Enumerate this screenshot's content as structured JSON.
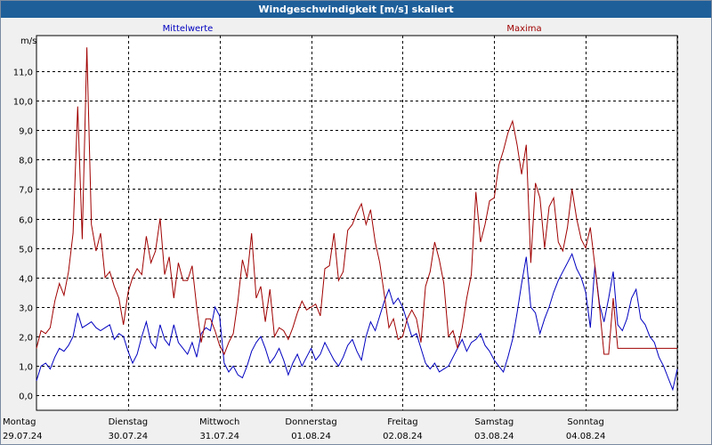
{
  "window": {
    "title": "Windgeschwindigkeit [m/s] skaliert"
  },
  "chart_data": {
    "type": "line",
    "title": "Windgeschwindigkeit [m/s] skaliert",
    "ylabel": "m/s",
    "xlabel": "",
    "ylim": [
      -0.5,
      12.2
    ],
    "yticks": [
      "0,0",
      "1,0",
      "2,0",
      "3,0",
      "4,0",
      "5,0",
      "6,0",
      "7,0",
      "8,0",
      "9,0",
      "10,0",
      "11,0"
    ],
    "ytick_values": [
      0,
      1,
      2,
      3,
      4,
      5,
      6,
      7,
      8,
      9,
      10,
      11
    ],
    "grid": true,
    "legend_placement": "top",
    "day_labels": [
      {
        "day": "Montag",
        "date": "29.07.24"
      },
      {
        "day": "Dienstag",
        "date": "30.07.24"
      },
      {
        "day": "Mittwoch",
        "date": "31.07.24"
      },
      {
        "day": "Donnerstag",
        "date": "01.08.24"
      },
      {
        "day": "Freitag",
        "date": "02.08.24"
      },
      {
        "day": "Samstag",
        "date": "03.08.24"
      },
      {
        "day": "Sonntag",
        "date": "04.08.24"
      }
    ],
    "x_unit": "days since 29.07.24 00:00",
    "xlim": [
      0,
      7
    ],
    "series": [
      {
        "name": "Mittelwerte",
        "color": "#0000c0",
        "x": [
          0,
          0.05,
          0.1,
          0.15,
          0.2,
          0.25,
          0.3,
          0.35,
          0.4,
          0.45,
          0.5,
          0.55,
          0.6,
          0.65,
          0.7,
          0.75,
          0.8,
          0.85,
          0.9,
          0.95,
          1,
          1.05,
          1.1,
          1.15,
          1.2,
          1.25,
          1.3,
          1.35,
          1.4,
          1.45,
          1.5,
          1.55,
          1.6,
          1.65,
          1.7,
          1.75,
          1.8,
          1.85,
          1.9,
          1.95,
          2,
          2.05,
          2.1,
          2.15,
          2.2,
          2.25,
          2.3,
          2.35,
          2.4,
          2.45,
          2.5,
          2.55,
          2.6,
          2.65,
          2.7,
          2.75,
          2.8,
          2.85,
          2.9,
          2.95,
          3,
          3.05,
          3.1,
          3.15,
          3.2,
          3.25,
          3.3,
          3.35,
          3.4,
          3.45,
          3.5,
          3.55,
          3.6,
          3.65,
          3.7,
          3.75,
          3.8,
          3.85,
          3.9,
          3.95,
          4,
          4.05,
          4.1,
          4.15,
          4.2,
          4.25,
          4.3,
          4.35,
          4.4,
          4.45,
          4.5,
          4.55,
          4.6,
          4.65,
          4.7,
          4.75,
          4.8,
          4.85,
          4.9,
          4.95,
          5,
          5.05,
          5.1,
          5.15,
          5.2,
          5.25,
          5.3,
          5.35,
          5.4,
          5.45,
          5.5,
          5.55,
          5.6,
          5.65,
          5.7,
          5.75,
          5.8,
          5.85,
          5.9,
          5.95,
          6,
          6.05,
          6.1,
          6.15,
          6.2,
          6.25,
          6.3,
          6.35,
          6.4,
          6.45,
          6.5,
          6.55,
          6.6,
          6.65,
          6.7,
          6.75,
          6.8,
          6.85,
          6.9,
          6.95,
          7
        ],
        "y": [
          0.5,
          1.0,
          1.1,
          0.9,
          1.3,
          1.6,
          1.5,
          1.7,
          2.0,
          2.8,
          2.3,
          2.4,
          2.5,
          2.3,
          2.2,
          2.3,
          2.4,
          1.9,
          2.1,
          2.0,
          1.5,
          1.1,
          1.4,
          2.0,
          2.5,
          1.8,
          1.6,
          2.4,
          1.9,
          1.7,
          2.4,
          1.8,
          1.6,
          1.4,
          1.8,
          1.3,
          2.1,
          2.3,
          2.2,
          3.0,
          2.7,
          1.1,
          0.8,
          1.0,
          0.7,
          0.6,
          1.0,
          1.5,
          1.8,
          2.0,
          1.6,
          1.1,
          1.3,
          1.6,
          1.2,
          0.7,
          1.1,
          1.4,
          1.0,
          1.3,
          1.6,
          1.2,
          1.4,
          1.8,
          1.5,
          1.2,
          1.0,
          1.3,
          1.7,
          1.9,
          1.5,
          1.2,
          2.0,
          2.5,
          2.2,
          2.7,
          3.2,
          3.6,
          3.1,
          3.3,
          3.0,
          2.5,
          2.0,
          2.1,
          1.6,
          1.1,
          0.9,
          1.1,
          0.8,
          0.9,
          1.0,
          1.3,
          1.6,
          1.9,
          1.5,
          1.8,
          1.9,
          2.1,
          1.7,
          1.5,
          1.2,
          1.0,
          0.8,
          1.3,
          1.9,
          2.8,
          3.8,
          4.7,
          3.0,
          2.8,
          2.1,
          2.6,
          3.0,
          3.5,
          3.9,
          4.2,
          4.5,
          4.8,
          4.3,
          4.0,
          3.5,
          2.3,
          4.4,
          3.1,
          2.5,
          3.3,
          4.2,
          2.4,
          2.2,
          2.6,
          3.3,
          3.6,
          2.6,
          2.4,
          2.0,
          1.8,
          1.3,
          1.0,
          0.6,
          0.2,
          0.9
        ]
      },
      {
        "name": "Maxima",
        "color": "#a00000",
        "x": [
          0,
          0.05,
          0.1,
          0.15,
          0.2,
          0.25,
          0.3,
          0.35,
          0.4,
          0.45,
          0.5,
          0.55,
          0.6,
          0.65,
          0.7,
          0.75,
          0.8,
          0.85,
          0.9,
          0.95,
          1,
          1.05,
          1.1,
          1.15,
          1.2,
          1.25,
          1.3,
          1.35,
          1.4,
          1.45,
          1.5,
          1.55,
          1.6,
          1.65,
          1.7,
          1.75,
          1.8,
          1.85,
          1.9,
          1.95,
          2,
          2.05,
          2.1,
          2.15,
          2.2,
          2.25,
          2.3,
          2.35,
          2.4,
          2.45,
          2.5,
          2.55,
          2.6,
          2.65,
          2.7,
          2.75,
          2.8,
          2.85,
          2.9,
          2.95,
          3,
          3.05,
          3.1,
          3.15,
          3.2,
          3.25,
          3.3,
          3.35,
          3.4,
          3.45,
          3.5,
          3.55,
          3.6,
          3.65,
          3.7,
          3.75,
          3.8,
          3.85,
          3.9,
          3.95,
          4,
          4.05,
          4.1,
          4.15,
          4.2,
          4.25,
          4.3,
          4.35,
          4.4,
          4.45,
          4.5,
          4.55,
          4.6,
          4.65,
          4.7,
          4.75,
          4.8,
          4.85,
          4.9,
          4.95,
          5,
          5.05,
          5.1,
          5.15,
          5.2,
          5.25,
          5.3,
          5.35,
          5.4,
          5.45,
          5.5,
          5.55,
          5.6,
          5.65,
          5.7,
          5.75,
          5.8,
          5.85,
          5.9,
          5.95,
          6,
          6.05,
          6.1,
          6.15,
          6.2,
          6.25,
          6.3,
          6.35,
          6.4,
          6.45,
          6.5,
          6.55,
          6.6,
          6.65,
          6.7,
          6.75,
          6.8,
          6.85,
          6.9,
          6.95,
          7
        ],
        "y": [
          1.6,
          2.2,
          2.1,
          2.3,
          3.2,
          3.8,
          3.4,
          4.2,
          5.5,
          9.8,
          5.3,
          11.8,
          5.8,
          4.9,
          5.5,
          4.0,
          4.2,
          3.7,
          3.3,
          2.4,
          3.5,
          4.0,
          4.3,
          4.1,
          5.4,
          4.5,
          4.9,
          6.0,
          4.1,
          4.7,
          3.3,
          4.5,
          3.9,
          3.9,
          4.4,
          3.0,
          1.8,
          2.6,
          2.6,
          2.2,
          1.7,
          1.4,
          1.8,
          2.1,
          3.2,
          4.6,
          4.0,
          5.5,
          3.3,
          3.7,
          2.5,
          3.6,
          2.0,
          2.3,
          2.2,
          1.9,
          2.3,
          2.8,
          3.2,
          2.9,
          3.0,
          3.1,
          2.7,
          4.3,
          4.4,
          5.5,
          3.9,
          4.2,
          5.6,
          5.8,
          6.2,
          6.5,
          5.8,
          6.3,
          5.2,
          4.5,
          3.4,
          2.3,
          2.6,
          1.9,
          2.0,
          2.6,
          2.9,
          2.6,
          1.8,
          3.7,
          4.2,
          5.2,
          4.6,
          3.8,
          2.0,
          2.2,
          1.6,
          2.3,
          3.3,
          4.1,
          6.9,
          5.2,
          5.8,
          6.6,
          6.7,
          7.8,
          8.3,
          8.9,
          9.3,
          8.5,
          7.5,
          8.5,
          4.5,
          7.2,
          6.7,
          5.0,
          6.4,
          6.7,
          5.2,
          4.9,
          5.7,
          7.0,
          6.0,
          5.3,
          5.0,
          5.7,
          4.4,
          3.0,
          1.4,
          1.4,
          3.3,
          1.6,
          1.6,
          1.6,
          1.6,
          1.6,
          1.6,
          1.6,
          1.6,
          1.6,
          1.6,
          1.6,
          1.6,
          1.6,
          1.6
        ]
      }
    ]
  }
}
